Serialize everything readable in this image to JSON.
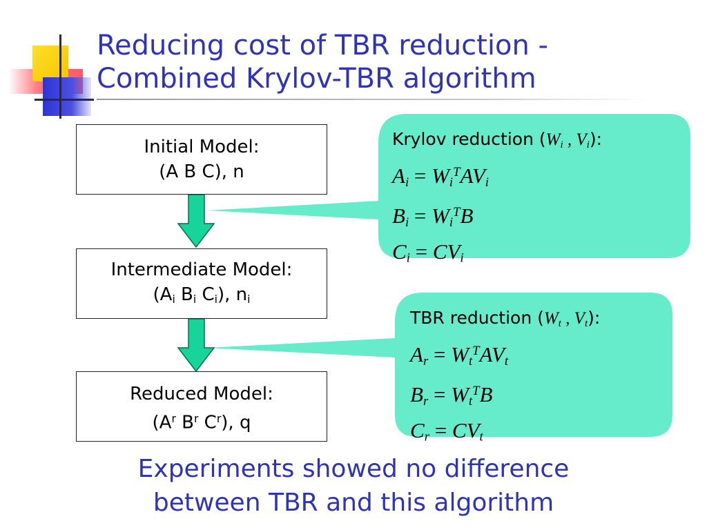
{
  "slide": {
    "title_line1": "Reducing cost of TBR reduction -",
    "title_line2": "Combined Krylov-TBR algorithm",
    "footer_line1": "Experiments showed no difference",
    "footer_line2": "between TBR and this algorithm"
  },
  "colors": {
    "title": "#2e33b8",
    "callout_fill": "#66ecca",
    "arrow_fill": "#16d49a",
    "box_border": "#222222"
  },
  "models": {
    "initial": {
      "label": "Initial Model:",
      "tuple": "(A B C), n"
    },
    "intermediate": {
      "label": "Intermediate Model:",
      "open": "(A",
      "sub_a": "i",
      "b": " B",
      "sub_b": "i",
      "c": " C",
      "sub_c": "i",
      "close": "), n",
      "sub_n": "i"
    },
    "reduced": {
      "label": "Reduced Model:",
      "open": "(A",
      "sup_a": "r",
      "b": " B",
      "sup_b": "r",
      "c": " C",
      "sup_c": "r",
      "close": "), q"
    }
  },
  "callouts": {
    "krylov": {
      "heading": "Krylov reduction (",
      "heading_w": "W",
      "heading_w_sub": "i",
      "heading_sep": " , ",
      "heading_v": "V",
      "heading_v_sub": "i",
      "heading_close": "):",
      "eq1": {
        "lhs": "A",
        "lhs_sub": "i",
        "eqs": " = ",
        "w": "W",
        "w_sub": "i",
        "w_sup": "T",
        "rest": "AV",
        "rest_sub": "i"
      },
      "eq2": {
        "lhs": "B",
        "lhs_sub": "i",
        "eqs": " = ",
        "w": "W",
        "w_sub": "i",
        "w_sup": "T",
        "rest": "B"
      },
      "eq3": {
        "lhs": "C",
        "lhs_sub": "i",
        "eqs": " = ",
        "rest": "CV",
        "rest_sub": "i"
      }
    },
    "tbr": {
      "heading": "TBR reduction (",
      "heading_w": "W",
      "heading_w_sub": "t",
      "heading_sep": " , ",
      "heading_v": "V",
      "heading_v_sub": "t",
      "heading_close": "):",
      "eq1": {
        "lhs": "A",
        "lhs_sub": "r",
        "eqs": " = ",
        "w": "W",
        "w_sub": "t",
        "w_sup": "T",
        "rest": "AV",
        "rest_sub": "t"
      },
      "eq2": {
        "lhs": "B",
        "lhs_sub": "r",
        "eqs": " = ",
        "w": "W",
        "w_sub": "t",
        "w_sup": "T",
        "rest": "B"
      },
      "eq3": {
        "lhs": "C",
        "lhs_sub": "r",
        "eqs": " = ",
        "rest": "CV",
        "rest_sub": "t"
      }
    }
  }
}
